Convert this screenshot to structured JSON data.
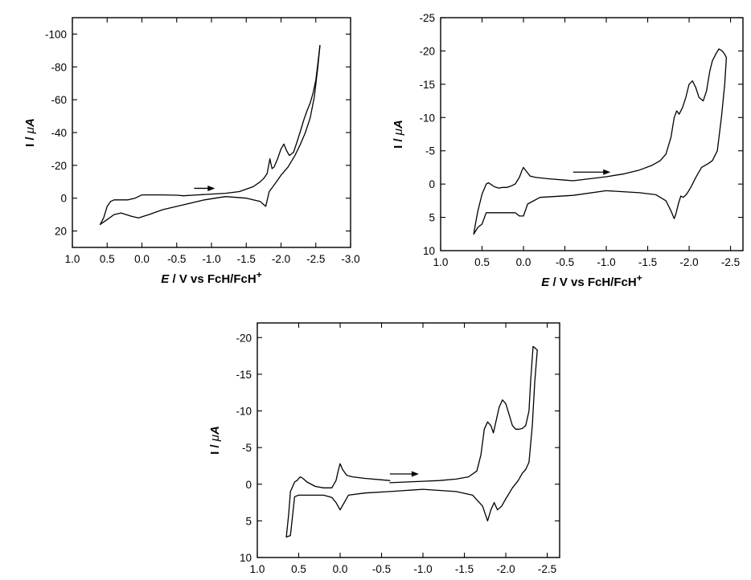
{
  "chart_data": [
    {
      "type": "line",
      "xlabel": {
        "italic": "E",
        "rest": " / V vs FcH/FcH",
        "sup": "+"
      },
      "ylabel": {
        "prefix": "I / ",
        "mu": "μ",
        "unit": "A"
      },
      "xlim": [
        1.0,
        -3.0
      ],
      "ylim": [
        30,
        -110
      ],
      "xticks": [
        1.0,
        0.5,
        0.0,
        -0.5,
        -1.0,
        -1.5,
        -2.0,
        -2.5,
        -3.0
      ],
      "xtick_labels": [
        "1.0",
        "0.5",
        "0.0",
        "-0.5",
        "-1.0",
        "-1.5",
        "-2.0",
        "-2.5",
        "-3.0"
      ],
      "yticks": [
        20,
        0,
        -20,
        -40,
        -60,
        -80,
        -100
      ],
      "ytick_labels": [
        "20",
        "0",
        "-20",
        "-40",
        "-60",
        "-80",
        "-100"
      ],
      "arrow": {
        "x_from": -0.75,
        "x_to": -1.05,
        "y": -6
      },
      "series": [
        {
          "x": [
            -0.6,
            -0.8,
            -1.0,
            -1.2,
            -1.4,
            -1.6,
            -1.7,
            -1.75,
            -1.8,
            -1.84,
            -1.87,
            -1.9,
            -1.95,
            -2.0,
            -2.04,
            -2.08,
            -2.12,
            -2.18,
            -2.22,
            -2.28,
            -2.33,
            -2.38,
            -2.42,
            -2.46,
            -2.5,
            -2.53,
            -2.56
          ],
          "y": [
            -1.5,
            -2,
            -2.5,
            -3,
            -4,
            -7,
            -10,
            -12,
            -15,
            -24,
            -18,
            -19,
            -24,
            -30,
            -33,
            -29,
            -26,
            -28,
            -33,
            -41,
            -48,
            -54,
            -58,
            -64,
            -72,
            -82,
            -93
          ]
        },
        {
          "x": [
            -2.56,
            -2.53,
            -2.48,
            -2.42,
            -2.35,
            -2.28,
            -2.2,
            -2.1,
            -2.0,
            -1.9,
            -1.83,
            -1.78,
            -1.7,
            -1.5,
            -1.2,
            -0.9,
            -0.6,
            -0.3,
            -0.1,
            0.05,
            0.15,
            0.3,
            0.4,
            0.5,
            0.6
          ],
          "y": [
            -93,
            -80,
            -62,
            -49,
            -40,
            -33,
            -26,
            -19,
            -14,
            -8,
            -4,
            5,
            2,
            0,
            -1,
            1,
            4,
            7,
            10,
            12,
            11,
            9,
            10,
            13,
            16
          ]
        },
        {
          "x": [
            0.6,
            0.55,
            0.5,
            0.45,
            0.4,
            0.3,
            0.2,
            0.1,
            0.05,
            0.0,
            -0.1,
            -0.3,
            -0.5,
            -0.6
          ],
          "y": [
            16,
            12,
            5,
            2,
            1,
            1,
            1,
            0,
            -1,
            -2,
            -2,
            -2,
            -1.8,
            -1.5
          ]
        }
      ]
    },
    {
      "type": "line",
      "xlabel": {
        "italic": "E",
        "rest": " / V vs FcH/FcH",
        "sup": "+"
      },
      "ylabel": {
        "prefix": "I / ",
        "mu": "μ",
        "unit": "A"
      },
      "xlim": [
        1.0,
        -2.65
      ],
      "ylim": [
        10,
        -25
      ],
      "xticks": [
        1.0,
        0.5,
        0.0,
        -0.5,
        -1.0,
        -1.5,
        -2.0,
        -2.5
      ],
      "xtick_labels": [
        "1.0",
        "0.5",
        "0.0",
        "-0.5",
        "-1.0",
        "-1.5",
        "-2.0",
        "-2.5"
      ],
      "yticks": [
        10,
        5,
        0,
        -5,
        -10,
        -15,
        -20,
        -25
      ],
      "ytick_labels": [
        "10",
        "5",
        "0",
        "-5",
        "-10",
        "-15",
        "-20",
        "-25"
      ],
      "arrow": {
        "x_from": -0.6,
        "x_to": -1.05,
        "y": -1.8
      },
      "series": [
        {
          "x": [
            -0.6,
            -0.8,
            -1.0,
            -1.2,
            -1.4,
            -1.55,
            -1.65,
            -1.72,
            -1.78,
            -1.82,
            -1.85,
            -1.88,
            -1.92,
            -1.96,
            -2.0,
            -2.04,
            -2.08,
            -2.12,
            -2.17,
            -2.21,
            -2.25,
            -2.28,
            -2.32,
            -2.36,
            -2.4,
            -2.43,
            -2.45
          ],
          "y": [
            -0.5,
            -0.8,
            -1.1,
            -1.5,
            -2.1,
            -2.8,
            -3.5,
            -4.5,
            -7,
            -10,
            -11,
            -10.5,
            -11.5,
            -13,
            -15,
            -15.5,
            -14.5,
            -13,
            -12.5,
            -14,
            -17,
            -18.5,
            -19.5,
            -20.3,
            -20,
            -19.5,
            -19
          ]
        },
        {
          "x": [
            -2.45,
            -2.43,
            -2.39,
            -2.34,
            -2.28,
            -2.22,
            -2.15,
            -2.08,
            -2.02,
            -1.97,
            -1.93,
            -1.9,
            -1.87,
            -1.84,
            -1.82,
            -1.78,
            -1.72,
            -1.6,
            -1.4,
            -1.0,
            -0.6,
            -0.2,
            -0.05,
            0.0,
            0.05,
            0.1,
            0.2,
            0.35,
            0.45,
            0.5,
            0.55,
            0.6
          ],
          "y": [
            -19,
            -15,
            -10,
            -5,
            -3.5,
            -3,
            -2.5,
            -1,
            0.5,
            1.5,
            2,
            1.8,
            3,
            4.5,
            5.2,
            4,
            2.5,
            1.6,
            1.3,
            1,
            1.7,
            2,
            3,
            4.8,
            4.8,
            4.3,
            4.3,
            4.3,
            4.3,
            6,
            6.5,
            7.5
          ]
        },
        {
          "x": [
            0.6,
            0.58,
            0.55,
            0.5,
            0.45,
            0.42,
            0.4,
            0.35,
            0.3,
            0.25,
            0.2,
            0.15,
            0.1,
            0.05,
            0.02,
            0.0,
            -0.03,
            -0.08,
            -0.15,
            -0.3,
            -0.5,
            -0.6
          ],
          "y": [
            7.5,
            6,
            4,
            1.5,
            0,
            -0.2,
            0,
            0.4,
            0.6,
            0.5,
            0.5,
            0.3,
            0,
            -1,
            -2,
            -2.5,
            -2,
            -1.2,
            -1,
            -0.8,
            -0.6,
            -0.5
          ]
        }
      ]
    },
    {
      "type": "line",
      "xlabel": {
        "italic": "E",
        "rest": " / V vs FcH/FcH",
        "sup": "+"
      },
      "ylabel": {
        "prefix": "I / ",
        "mu": "μ",
        "unit": "A"
      },
      "xlim": [
        1.0,
        -2.65
      ],
      "ylim": [
        10,
        -22
      ],
      "xticks": [
        1.0,
        0.5,
        0.0,
        -0.5,
        -1.0,
        -1.5,
        -2.0,
        -2.5
      ],
      "xtick_labels": [
        "1.0",
        "0.5",
        "0.0",
        "-0.5",
        "-1.0",
        "-1.5",
        "-2.0",
        "-2.5"
      ],
      "yticks": [
        10,
        5,
        0,
        -5,
        -10,
        -15,
        -20
      ],
      "ytick_labels": [
        "10",
        "5",
        "0",
        "-5",
        "-10",
        "-15",
        "-20"
      ],
      "arrow": {
        "x_from": -0.6,
        "x_to": -0.95,
        "y": -1.4
      },
      "series": [
        {
          "x": [
            -0.6,
            -0.8,
            -1.0,
            -1.2,
            -1.4,
            -1.55,
            -1.65,
            -1.7,
            -1.74,
            -1.78,
            -1.82,
            -1.85,
            -1.88,
            -1.92,
            -1.96,
            -2.0,
            -2.04,
            -2.08,
            -2.12,
            -2.16,
            -2.2,
            -2.24,
            -2.28,
            -2.3,
            -2.33,
            -2.36,
            -2.38
          ],
          "y": [
            -0.2,
            -0.3,
            -0.4,
            -0.5,
            -0.7,
            -1.0,
            -1.8,
            -4,
            -7.5,
            -8.5,
            -8,
            -7,
            -8.5,
            -10.5,
            -11.5,
            -11,
            -9.5,
            -8,
            -7.5,
            -7.5,
            -7.6,
            -8,
            -10,
            -14,
            -18.8,
            -18.5,
            -18.3
          ]
        },
        {
          "x": [
            -2.38,
            -2.35,
            -2.32,
            -2.28,
            -2.24,
            -2.2,
            -2.15,
            -2.08,
            -2.0,
            -1.95,
            -1.9,
            -1.86,
            -1.82,
            -1.78,
            -1.72,
            -1.6,
            -1.4,
            -1.0,
            -0.6,
            -0.3,
            -0.1,
            -0.05,
            0.0,
            0.05,
            0.1,
            0.2,
            0.3,
            0.4,
            0.5,
            0.55,
            0.6,
            0.65
          ],
          "y": [
            -18.3,
            -14,
            -8,
            -3,
            -2,
            -1.5,
            -0.5,
            0.5,
            2,
            3,
            3.5,
            2.5,
            3.5,
            5,
            3,
            1.5,
            1,
            0.7,
            1,
            1.2,
            1.5,
            2.5,
            3.5,
            2.5,
            1.8,
            1.5,
            1.5,
            1.5,
            1.5,
            1.7,
            7,
            7.2
          ]
        },
        {
          "x": [
            0.65,
            0.62,
            0.6,
            0.55,
            0.52,
            0.5,
            0.48,
            0.45,
            0.4,
            0.3,
            0.2,
            0.1,
            0.05,
            0.02,
            0.0,
            -0.03,
            -0.08,
            -0.15,
            -0.3,
            -0.5,
            -0.6
          ],
          "y": [
            7.2,
            4,
            1,
            -0.3,
            -0.5,
            -0.8,
            -1,
            -0.8,
            -0.3,
            0.3,
            0.5,
            0.5,
            -0.5,
            -2,
            -2.8,
            -2,
            -1.2,
            -1,
            -0.8,
            -0.6,
            -0.5
          ]
        }
      ]
    }
  ]
}
